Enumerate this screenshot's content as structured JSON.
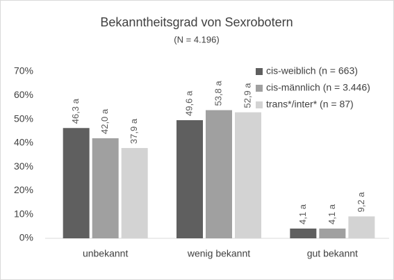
{
  "chart_data": {
    "type": "bar",
    "title": "Bekanntheitsgrad von Sexrobotern",
    "subtitle": "(N = 4.196)",
    "categories": [
      "unbekannt",
      "wenig bekannt",
      "gut bekannt"
    ],
    "series": [
      {
        "name": "cis-weiblich (n = 663)",
        "color": "#5f5f5f",
        "values": [
          46.3,
          49.6,
          4.1
        ],
        "value_labels": [
          "46,3 a",
          "49,6 a",
          "4,1 a"
        ]
      },
      {
        "name": "cis-männlich (n = 3.446)",
        "color": "#a0a0a0",
        "values": [
          42.0,
          53.8,
          4.1
        ],
        "value_labels": [
          "42,0 a",
          "53,8 a",
          "4,1 a"
        ]
      },
      {
        "name": "trans*/inter* (n = 87)",
        "color": "#d3d3d3",
        "values": [
          37.9,
          52.9,
          9.2
        ],
        "value_labels": [
          "37,9 a",
          "52,9 a",
          "9,2 a"
        ]
      }
    ],
    "ylim": [
      0,
      70
    ],
    "yticks": [
      {
        "value": 0,
        "label": "0%"
      },
      {
        "value": 10,
        "label": "10%"
      },
      {
        "value": 20,
        "label": "20%"
      },
      {
        "value": 30,
        "label": "30%"
      },
      {
        "value": 40,
        "label": "40%"
      },
      {
        "value": 50,
        "label": "50%"
      },
      {
        "value": 60,
        "label": "60%"
      },
      {
        "value": 70,
        "label": "70%"
      }
    ],
    "grid": false,
    "legend": "top-right"
  }
}
